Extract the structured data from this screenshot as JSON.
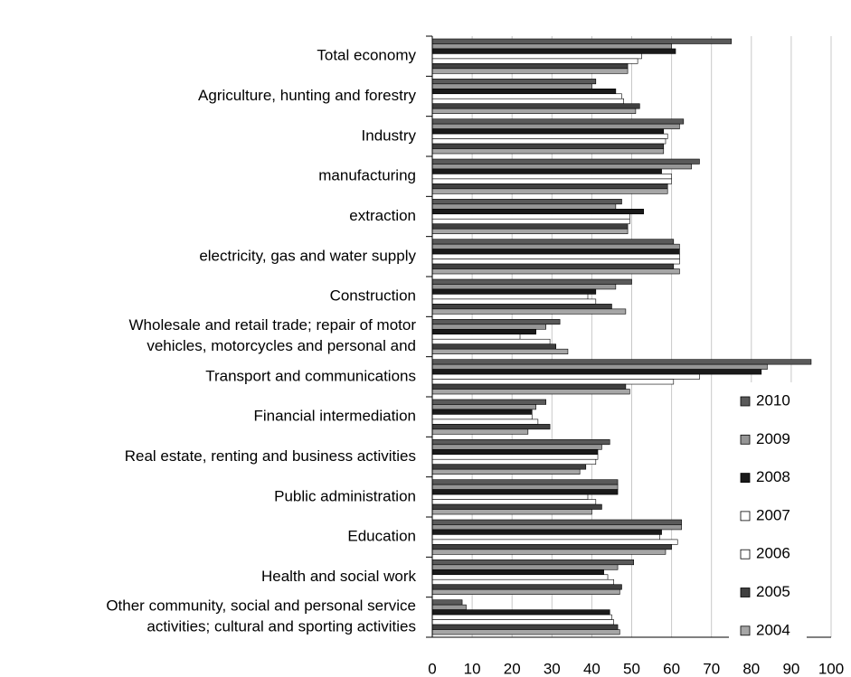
{
  "chart_data": {
    "type": "barh",
    "categories": [
      "Total economy",
      "Agriculture, hunting and forestry",
      "Industry",
      "manufacturing",
      "extraction",
      "electricity, gas and water supply",
      "Construction",
      "Wholesale and retail trade; repair of motor\nvehicles, motorcycles and personal and",
      "Transport and communications",
      "Financial intermediation",
      "Real estate, renting and business activities",
      "Public administration",
      "Education",
      "Health and social work",
      "Other community, social and personal service\nactivities; cultural and sporting activities"
    ],
    "series": [
      {
        "name": "2010",
        "color": "#5a5a5a",
        "values": [
          75,
          41,
          63,
          67,
          47.5,
          60.5,
          50,
          32,
          95,
          28.5,
          44.5,
          46.5,
          62.5,
          50.5,
          7.5
        ]
      },
      {
        "name": "2009",
        "color": "#969696",
        "values": [
          60,
          40,
          62,
          65,
          46,
          62,
          46,
          28.5,
          84,
          26,
          42.5,
          46.5,
          62.5,
          46.5,
          8.5
        ]
      },
      {
        "name": "2008",
        "color": "#1a1a1a",
        "values": [
          61,
          46,
          58,
          57.5,
          53,
          62,
          41,
          26,
          82.5,
          25,
          41.5,
          46.5,
          57.5,
          43,
          44.5
        ]
      },
      {
        "name": "2007",
        "color": "#ffffff",
        "values": [
          52.5,
          47.5,
          59,
          60,
          49.5,
          62,
          39,
          22,
          67,
          25,
          41.5,
          39,
          57,
          44,
          45
        ]
      },
      {
        "name": "2006",
        "color": "#ffffff",
        "values": [
          51.5,
          48,
          58.5,
          60,
          49.5,
          62,
          41,
          29.5,
          60.5,
          26.5,
          41,
          41,
          61.5,
          45.5,
          45.5
        ]
      },
      {
        "name": "2005",
        "color": "#404040",
        "values": [
          49,
          52,
          58,
          59,
          49,
          60.5,
          45,
          31,
          48.5,
          29.5,
          38.5,
          42.5,
          60,
          47.5,
          46.5
        ]
      },
      {
        "name": "2004",
        "color": "#a6a6a6",
        "values": [
          49,
          51,
          58,
          59,
          49,
          62,
          48.5,
          34,
          49.5,
          24,
          37,
          40,
          58.5,
          47,
          47
        ]
      }
    ],
    "xlim": [
      0,
      100
    ],
    "xticks": [
      0,
      10,
      20,
      30,
      40,
      50,
      60,
      70,
      80,
      90,
      100
    ],
    "grid": true,
    "legend": "lower right"
  }
}
